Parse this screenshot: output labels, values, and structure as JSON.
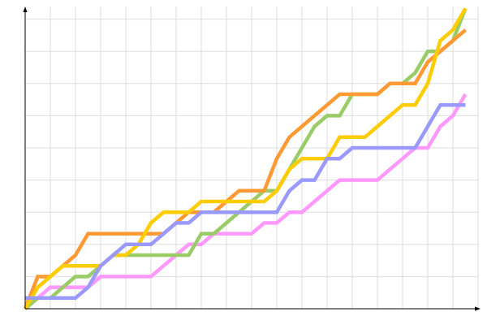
{
  "chart_data": {
    "type": "line",
    "title": "",
    "xlabel": "",
    "ylabel": "",
    "xlim": [
      0,
      36
    ],
    "ylim": [
      0,
      28
    ],
    "grid": true,
    "x_grid_step": 2,
    "y_grid_step": 3,
    "x": [
      0,
      1,
      2,
      3,
      4,
      5,
      6,
      7,
      8,
      9,
      10,
      11,
      12,
      13,
      14,
      15,
      16,
      17,
      18,
      19,
      20,
      21,
      22,
      23,
      24,
      25,
      26,
      27,
      28,
      29,
      30,
      31,
      32,
      33,
      34,
      35
    ],
    "series": [
      {
        "color": "#ff99ff",
        "values": [
          0,
          1,
          2,
          2,
          2,
          2,
          3,
          3,
          3,
          3,
          3,
          4,
          5,
          6,
          6,
          7,
          7,
          7,
          7,
          8,
          8,
          9,
          9,
          10,
          11,
          12,
          12,
          12,
          12,
          13,
          14,
          15,
          15,
          17,
          18,
          20
        ]
      },
      {
        "color": "#99cc66",
        "values": [
          0,
          1,
          1,
          2,
          3,
          3,
          4,
          5,
          5,
          5,
          5,
          5,
          5,
          5,
          7,
          7,
          8,
          9,
          10,
          11,
          11,
          13,
          15,
          17,
          18,
          18,
          20,
          20,
          20,
          21,
          21,
          22,
          24,
          24,
          25,
          28
        ]
      },
      {
        "color": "#ff9933",
        "values": [
          0,
          3,
          3,
          4,
          5,
          7,
          7,
          7,
          7,
          7,
          7,
          7,
          8,
          9,
          9,
          9,
          10,
          11,
          11,
          11,
          14,
          16,
          17,
          18,
          19,
          20,
          20,
          20,
          20,
          21,
          21,
          21,
          23,
          24,
          25,
          26
        ]
      },
      {
        "color": "#ffcc00",
        "values": [
          0,
          2,
          3,
          4,
          4,
          4,
          4,
          5,
          5,
          6,
          8,
          9,
          9,
          9,
          10,
          10,
          10,
          10,
          10,
          10,
          11,
          13,
          14,
          14,
          14,
          16,
          16,
          16,
          17,
          18,
          19,
          19,
          21,
          25,
          26,
          28
        ]
      },
      {
        "color": "#9999ff",
        "values": [
          1,
          1,
          1,
          1,
          1,
          2,
          4,
          5,
          6,
          6,
          6,
          7,
          8,
          8,
          9,
          9,
          9,
          9,
          9,
          9,
          9,
          11,
          12,
          12,
          14,
          14,
          15,
          15,
          15,
          15,
          15,
          15,
          17,
          19,
          19,
          19
        ]
      }
    ]
  }
}
